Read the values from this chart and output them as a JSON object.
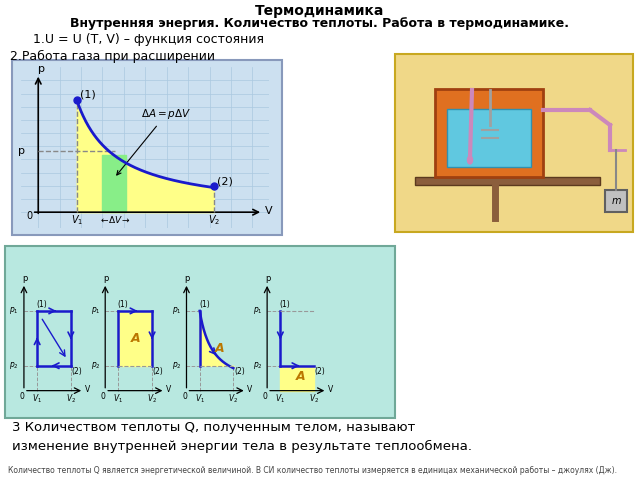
{
  "title_line1": "Термодинамика",
  "title_line2": "Внутренняя энергия. Количество теплоты. Работа в термодинамике.",
  "text1": "  1.U = U (T, V) – функция состояния",
  "text2": "2.Работа газа при расширении",
  "text3": "3 Количеством теплоты Q, полученным телом, называют\nизменение внутренней энергии тела в результате теплообмена.",
  "text4": "Количество теплоты Q является энергетической величиной. В СИ количество теплоты измеряется в единицах механической работы – джоулях (Дж).",
  "bg_color": "#ffffff",
  "graph1_bg": "#cce0f0",
  "graph1_grid": "#aac8e0",
  "bottom_panel_bg": "#b8e8e0",
  "right_panel_bg": "#f0d888",
  "yellow_fill": "#ffff88",
  "green_fill": "#88ee88",
  "blue_line": "#1a1acc",
  "dashed_color": "#888888"
}
